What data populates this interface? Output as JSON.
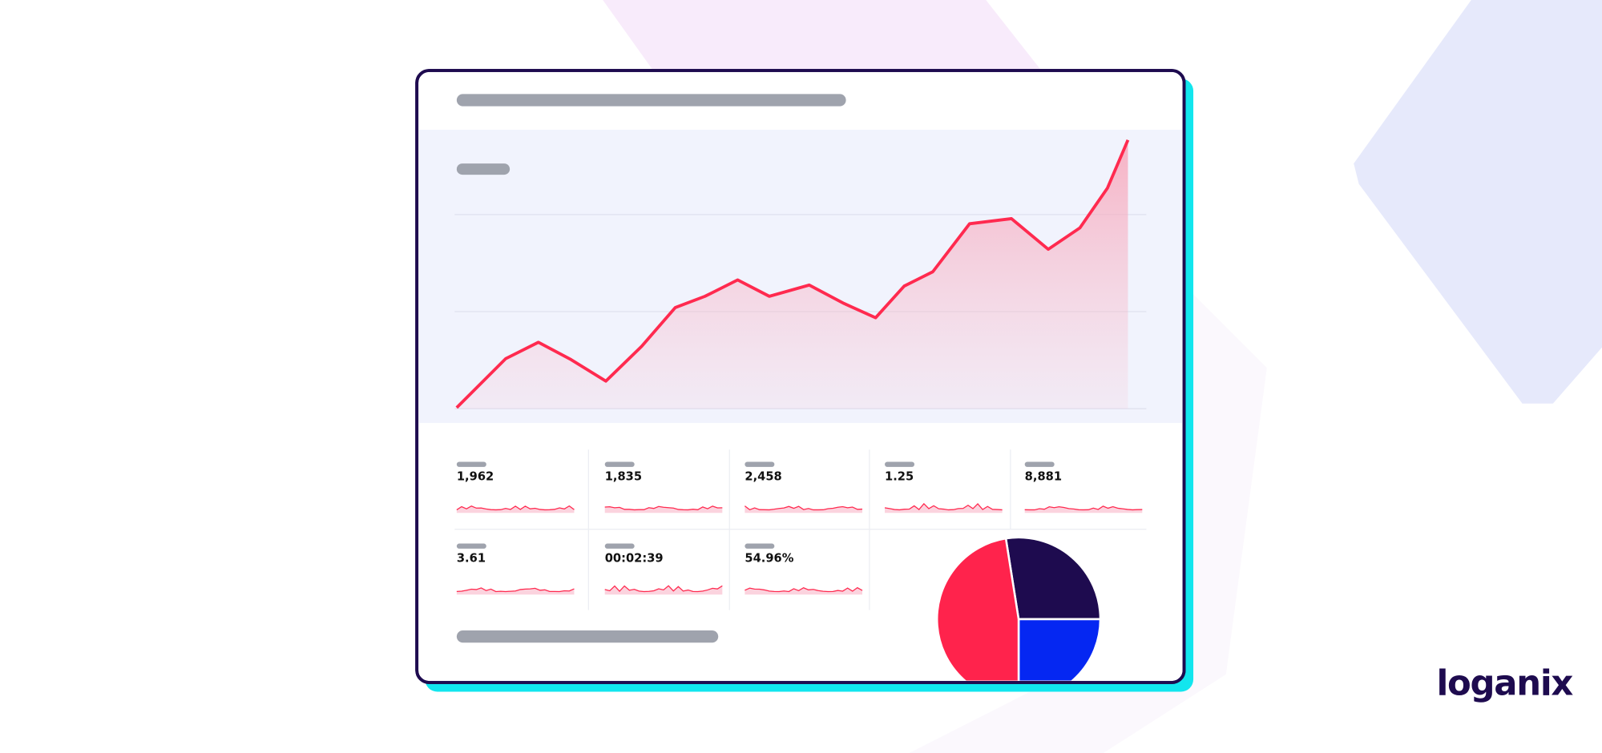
{
  "metrics": [
    "1,962",
    "1,835",
    "2,458",
    "1.25",
    "8,881",
    "3.61",
    "00:02:39",
    "54.96%"
  ],
  "brand": {
    "name": "loganix"
  }
}
